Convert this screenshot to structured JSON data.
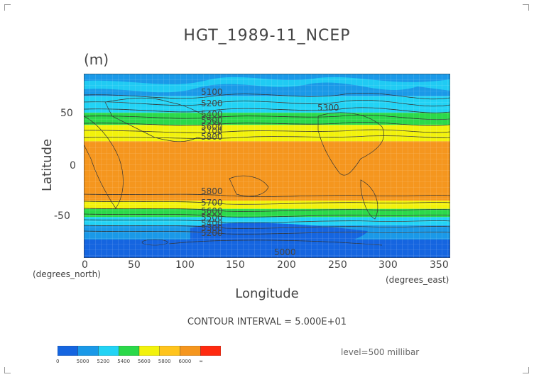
{
  "title": "HGT_1989-11_NCEP",
  "units": "(m)",
  "axes": {
    "ylabel": "Latitude",
    "xlabel": "Longitude",
    "y_ticks": [
      "50",
      "0",
      "-50"
    ],
    "x_ticks": [
      "0",
      "50",
      "100",
      "150",
      "200",
      "250",
      "300",
      "350"
    ],
    "y_unit": "(degrees_north)",
    "x_unit": "(degrees_east)"
  },
  "contour_labels": [
    "5100",
    "5200",
    "5400",
    "5500",
    "5600",
    "5700",
    "5800",
    "5300",
    "5800",
    "5700",
    "5600",
    "5500",
    "5400",
    "5300",
    "5200",
    "5000"
  ],
  "contour_interval": "CONTOUR INTERVAL = 5.000E+01",
  "level": "level=500 millibar",
  "colorbar": {
    "labels": [
      "0",
      "5000",
      "5200",
      "5400",
      "5600",
      "5800",
      "6000",
      "∞"
    ],
    "colors": [
      "#1565e0",
      "#1a99e8",
      "#22d3f5",
      "#2bd94a",
      "#f2f20c",
      "#ffc41c",
      "#f5961e",
      "#ff2a10"
    ]
  },
  "chart_data": {
    "type": "heatmap",
    "title": "HGT_1989-11_NCEP",
    "xlabel": "Longitude",
    "ylabel": "Latitude",
    "xlim": [
      0,
      360
    ],
    "ylim": [
      -90,
      90
    ],
    "bands": [
      {
        "lat": [
          -90,
          -72
        ],
        "color": "#1565e0"
      },
      {
        "lat": [
          -72,
          -58
        ],
        "color": "#1a99e8"
      },
      {
        "lat": [
          -58,
          -50
        ],
        "color": "#22d3f5"
      },
      {
        "lat": [
          -50,
          -42
        ],
        "color": "#2bd94a"
      },
      {
        "lat": [
          -42,
          -34
        ],
        "color": "#f2f20c"
      },
      {
        "lat": [
          -34,
          24
        ],
        "color": "#f5961e"
      },
      {
        "lat": [
          24,
          40
        ],
        "color": "#f2f20c"
      },
      {
        "lat": [
          40,
          52
        ],
        "color": "#2bd94a"
      },
      {
        "lat": [
          52,
          68
        ],
        "color": "#22d3f5"
      },
      {
        "lat": [
          68,
          90
        ],
        "color": "#1a99e8"
      }
    ]
  }
}
